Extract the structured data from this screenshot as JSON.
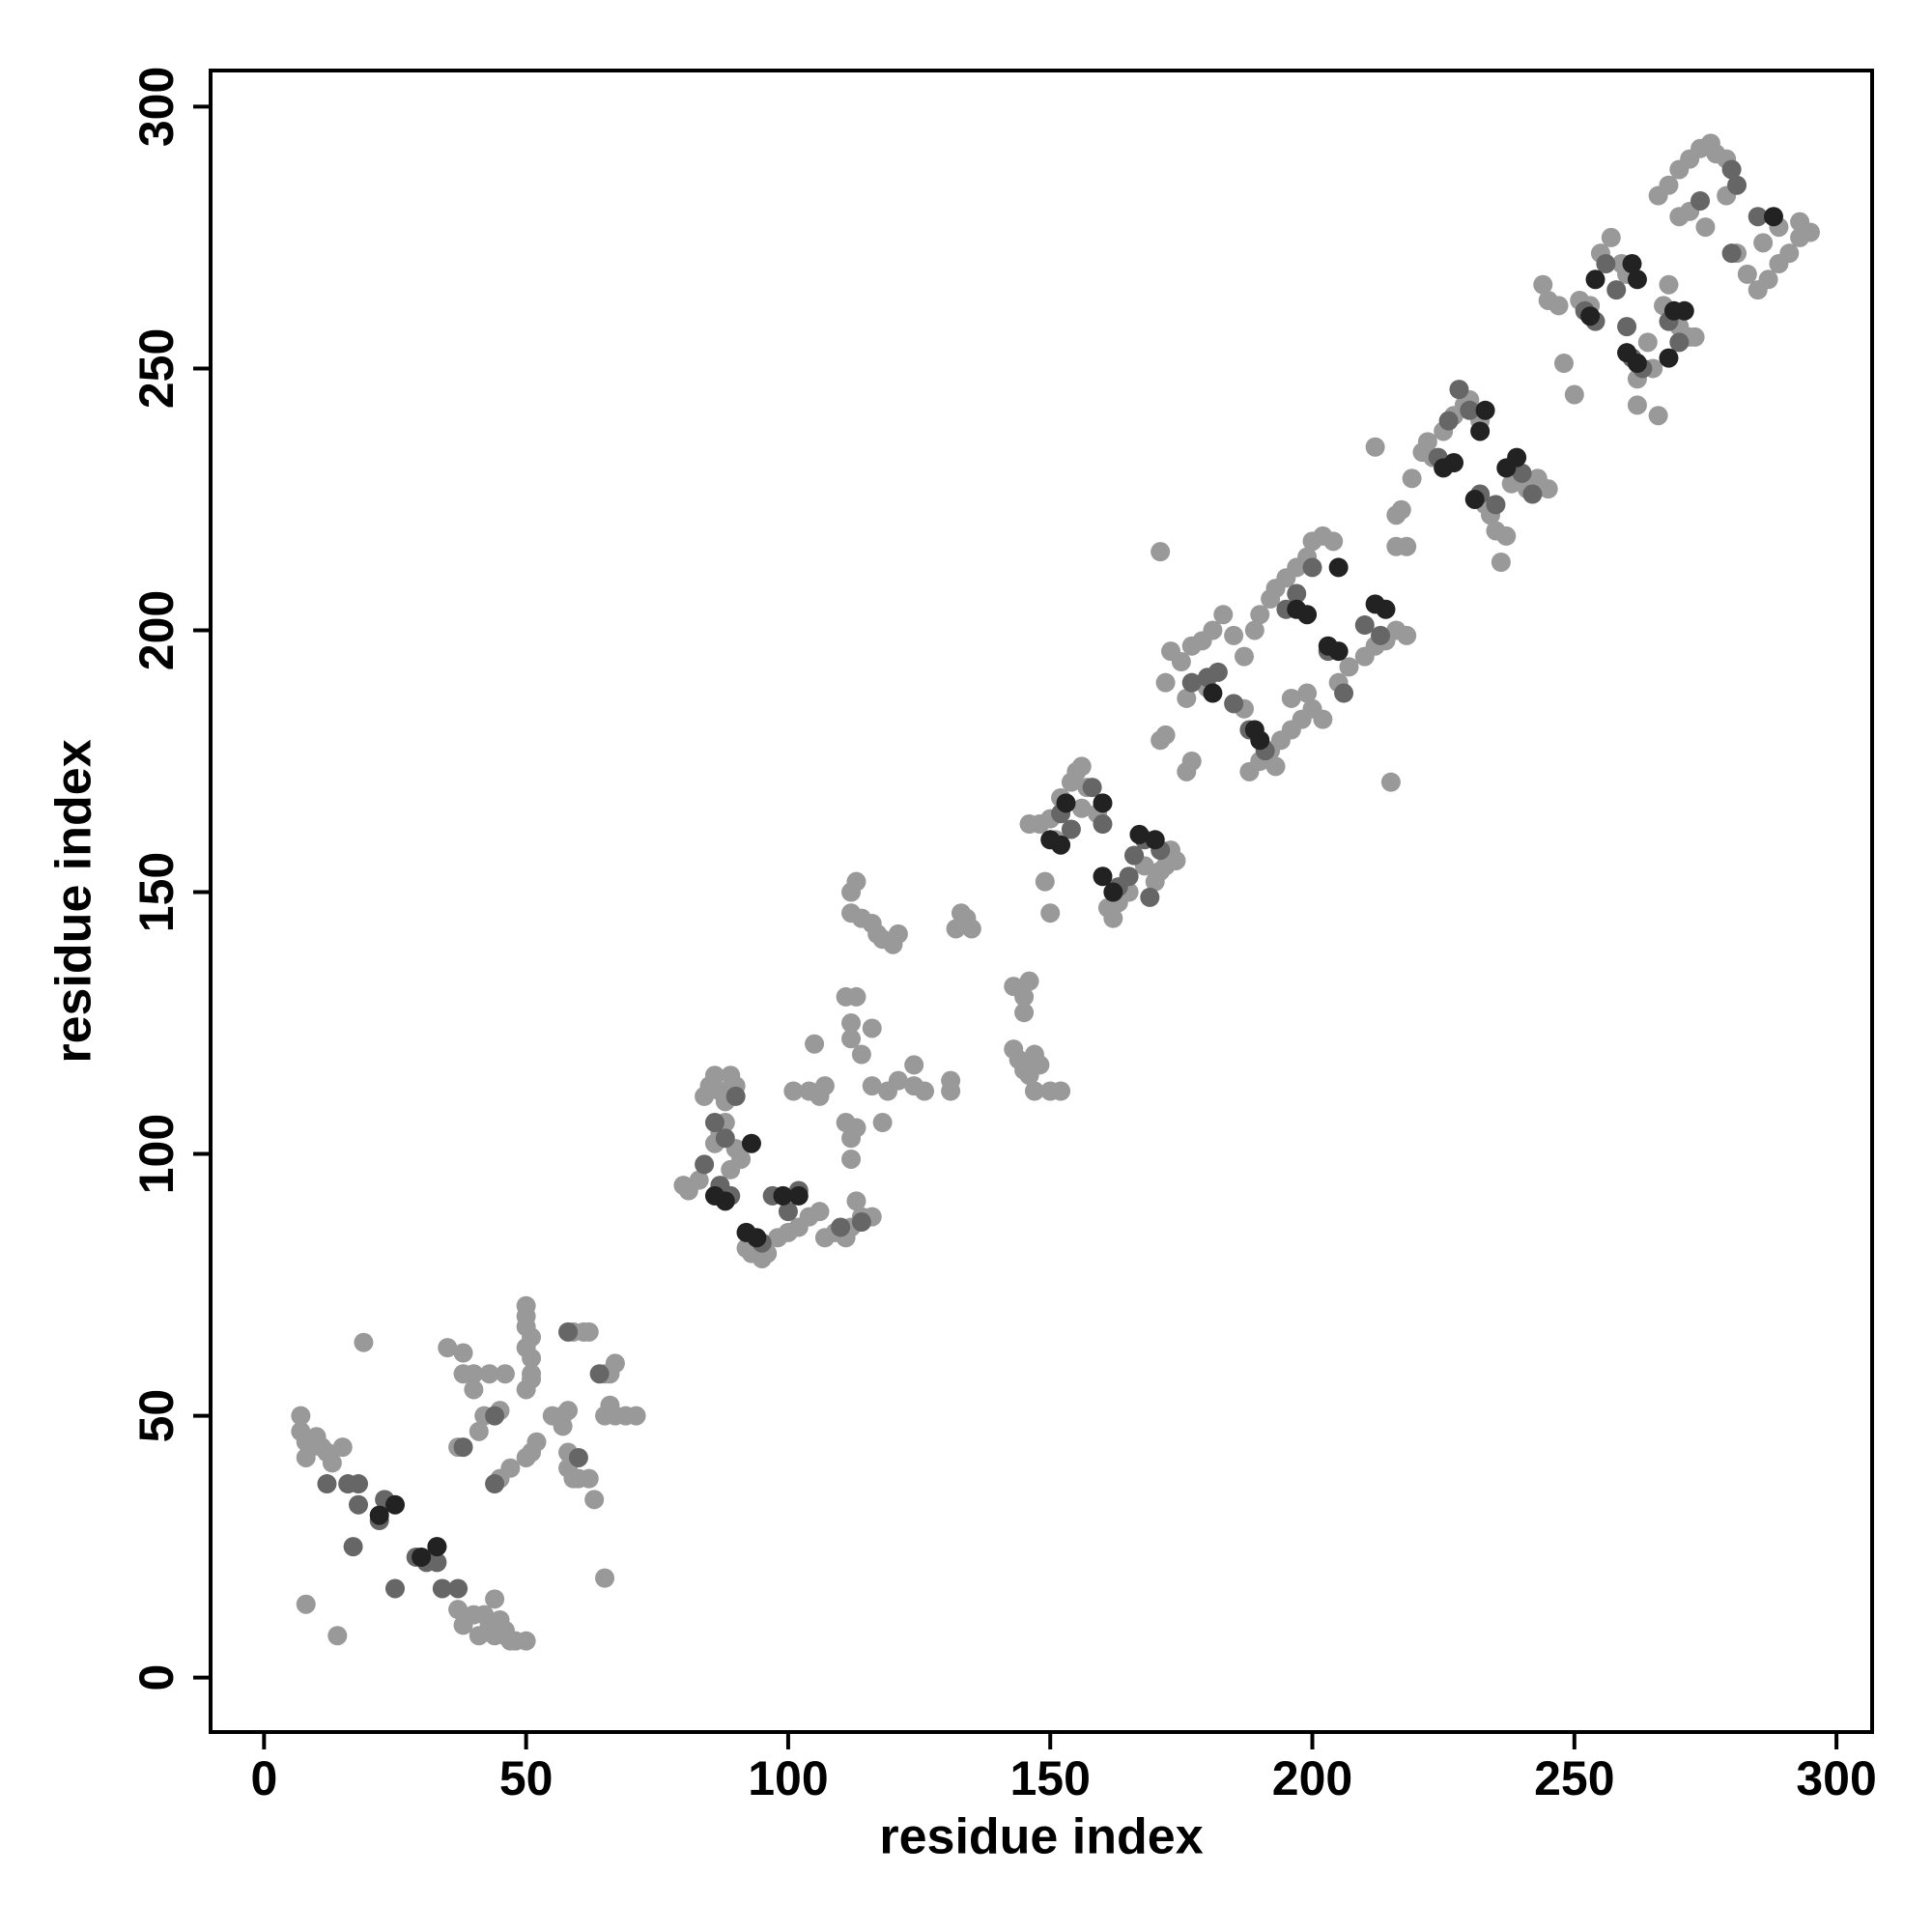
{
  "chart_data": {
    "type": "scatter",
    "x_label": "residue index",
    "y_label": "residue index",
    "xlim": [
      -10.2,
      306.8
    ],
    "ylim": [
      -10.4,
      306.9
    ],
    "xticks": [
      0,
      50,
      100,
      150,
      200,
      250,
      300
    ],
    "yticks": [
      0,
      50,
      100,
      150,
      200,
      250,
      300
    ],
    "grid": false,
    "series": [
      {
        "color": "#999999",
        "x": [
          7,
          7,
          8,
          8,
          9,
          10,
          11,
          12,
          13,
          15,
          8,
          14,
          19,
          44,
          42,
          43,
          44,
          46,
          47,
          48,
          50,
          45,
          46,
          41,
          40,
          38,
          37,
          35,
          38,
          38,
          40,
          43,
          46,
          40,
          42,
          45,
          41,
          37,
          45,
          47,
          50,
          50,
          50,
          51,
          50,
          51,
          51,
          51,
          50,
          52,
          51,
          50,
          55,
          57,
          58,
          57,
          58,
          58,
          59,
          60,
          62,
          63,
          65,
          59,
          61,
          62,
          65,
          66,
          67,
          65,
          67,
          69,
          71,
          66,
          80,
          81,
          83,
          84,
          85,
          86,
          87,
          88,
          89,
          90,
          88,
          87,
          86,
          90,
          91,
          89,
          92,
          93,
          95,
          96,
          98,
          100,
          102,
          104,
          106,
          107,
          109,
          111,
          112,
          114,
          116,
          113,
          101,
          104,
          106,
          107,
          105,
          111,
          113,
          112,
          112,
          114,
          116,
          111,
          112,
          113,
          112,
          112,
          114,
          116,
          117,
          118,
          120,
          121,
          113,
          112,
          116,
          119,
          121,
          124,
          126,
          118,
          124,
          131,
          131,
          132,
          133,
          134,
          135,
          143,
          144,
          145,
          146,
          147,
          143,
          145,
          146,
          150,
          152,
          148,
          147,
          149,
          150,
          145,
          146,
          148,
          150,
          152,
          154,
          155,
          156,
          157,
          159,
          161,
          162,
          163,
          165,
          166,
          168,
          170,
          171,
          172,
          173,
          174,
          156,
          151,
          171,
          171,
          172,
          172,
          173,
          175,
          177,
          179,
          181,
          183,
          185,
          187,
          189,
          190,
          192,
          193,
          195,
          197,
          199,
          200,
          202,
          204,
          176,
          177,
          188,
          190,
          192,
          194,
          196,
          198,
          200,
          196,
          199,
          202,
          205,
          207,
          210,
          212,
          214,
          216,
          218,
          215,
          176,
          180,
          187,
          193,
          216,
          217,
          216,
          218,
          219,
          221,
          222,
          223,
          225,
          227,
          229,
          230,
          232,
          233,
          234,
          235,
          237,
          236,
          238,
          239,
          241,
          243,
          245,
          212,
          244,
          245,
          247,
          248,
          250,
          251,
          253,
          255,
          257,
          259,
          260,
          262,
          262,
          264,
          265,
          266,
          267,
          268,
          270,
          272,
          273,
          266,
          268,
          270,
          272,
          274,
          276,
          277,
          279,
          270,
          272,
          275,
          279,
          281,
          283,
          285,
          287,
          289,
          291,
          293,
          295,
          293,
          289,
          286
        ],
        "values": [
          50,
          47,
          45,
          42,
          44,
          46,
          44,
          43,
          41,
          44,
          14,
          8,
          64,
          15,
          12,
          10,
          8,
          8,
          7,
          7,
          7,
          11,
          9,
          8,
          12,
          10,
          13,
          63,
          62,
          58,
          58,
          58,
          58,
          55,
          50,
          51,
          47,
          44,
          38,
          40,
          71,
          69,
          67,
          65,
          63,
          61,
          58,
          57,
          55,
          45,
          43,
          42,
          50,
          50,
          51,
          48,
          43,
          40,
          38,
          38,
          38,
          34,
          19,
          66,
          66,
          66,
          58,
          58,
          60,
          50,
          50,
          50,
          50,
          52,
          94,
          93,
          95,
          111,
          113,
          115,
          112,
          110,
          115,
          113,
          106,
          104,
          102,
          101,
          99,
          97,
          82,
          81,
          80,
          81,
          84,
          85,
          86,
          88,
          89,
          84,
          85,
          84,
          86,
          88,
          88,
          91,
          112,
          112,
          111,
          113,
          121,
          130,
          130,
          125,
          122,
          119,
          124,
          106,
          103,
          105,
          99,
          146,
          145,
          144,
          142,
          141,
          140,
          142,
          152,
          150,
          113,
          112,
          114,
          113,
          112,
          106,
          117,
          112,
          114,
          143,
          146,
          145,
          143,
          120,
          118,
          116,
          115,
          112,
          132,
          130,
          133,
          112,
          112,
          117,
          119,
          152,
          146,
          127,
          163,
          163,
          164,
          168,
          171,
          173,
          174,
          170,
          165,
          147,
          145,
          148,
          150,
          157,
          155,
          152,
          154,
          155,
          158,
          156,
          166,
          160,
          215,
          179,
          180,
          190,
          196,
          194,
          197,
          198,
          200,
          203,
          199,
          195,
          200,
          203,
          206,
          208,
          210,
          212,
          214,
          217,
          218,
          217,
          173,
          175,
          173,
          175,
          177,
          179,
          181,
          183,
          185,
          187,
          188,
          183,
          190,
          193,
          195,
          197,
          198,
          200,
          199,
          171,
          187,
          189,
          185,
          174,
          222,
          223,
          216,
          216,
          229,
          234,
          236,
          233,
          238,
          241,
          243,
          244,
          240,
          224,
          222,
          219,
          218,
          213,
          228,
          229,
          227,
          229,
          227,
          235,
          266,
          263,
          262,
          251,
          245,
          263,
          262,
          272,
          275,
          270,
          268,
          248,
          243,
          255,
          250,
          241,
          262,
          266,
          258,
          256,
          256,
          283,
          285,
          288,
          290,
          292,
          293,
          291,
          290,
          279,
          280,
          277,
          283,
          272,
          268,
          265,
          267,
          270,
          272,
          275,
          276,
          278,
          277,
          274
        ]
      },
      {
        "color": "#666666",
        "x": [
          12,
          16,
          18,
          18,
          17,
          22,
          23,
          25,
          33,
          34,
          37,
          33,
          29,
          31,
          44,
          38,
          60,
          58,
          44,
          64,
          84,
          86,
          88,
          90,
          95,
          97,
          100,
          102,
          87,
          89,
          110,
          114,
          152,
          154,
          158,
          160,
          163,
          165,
          166,
          168,
          169,
          171,
          182,
          185,
          188,
          191,
          195,
          197,
          200,
          203,
          206,
          210,
          213,
          177,
          180,
          224,
          226,
          228,
          230,
          232,
          235,
          240,
          242,
          252,
          254,
          256,
          258,
          260,
          261,
          263,
          268,
          270,
          280,
          281,
          285,
          274,
          280
        ],
        "values": [
          37,
          37,
          37,
          33,
          25,
          30,
          34,
          17,
          22,
          17,
          17,
          25,
          23,
          22,
          50,
          44,
          42,
          66,
          37,
          58,
          98,
          106,
          103,
          111,
          83,
          92,
          89,
          93,
          94,
          92,
          86,
          87,
          165,
          162,
          170,
          163,
          151,
          153,
          157,
          160,
          149,
          158,
          192,
          186,
          181,
          177,
          204,
          207,
          212,
          196,
          188,
          201,
          199,
          190,
          191,
          233,
          240,
          246,
          242,
          226,
          224,
          230,
          226,
          261,
          259,
          270,
          265,
          258,
          252,
          250,
          259,
          255,
          288,
          285,
          279,
          282,
          272
        ]
      },
      {
        "color": "#222222",
        "x": [
          25,
          22,
          33,
          30,
          86,
          88,
          92,
          94,
          93,
          99,
          102,
          150,
          152,
          153,
          160,
          160,
          162,
          167,
          170,
          181,
          189,
          190,
          197,
          199,
          205,
          203,
          205,
          212,
          214,
          225,
          227,
          232,
          233,
          231,
          237,
          239,
          253,
          254,
          261,
          262,
          260,
          262,
          268,
          269,
          271,
          288
        ],
        "values": [
          33,
          31,
          25,
          23,
          92,
          91,
          85,
          84,
          102,
          92,
          92,
          160,
          159,
          167,
          167,
          153,
          150,
          161,
          160,
          188,
          181,
          179,
          204,
          203,
          212,
          197,
          196,
          205,
          204,
          231,
          232,
          238,
          242,
          225,
          231,
          233,
          260,
          267,
          270,
          267,
          253,
          251,
          252,
          261,
          261,
          279
        ]
      }
    ]
  }
}
